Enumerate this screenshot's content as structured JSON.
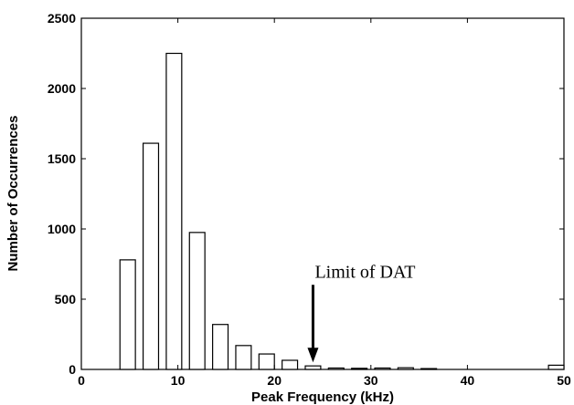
{
  "chart_data": {
    "type": "bar",
    "title": "",
    "xlabel": "Peak Frequency (kHz)",
    "ylabel": "Number of Occurrences",
    "xlim": [
      0,
      50
    ],
    "ylim": [
      0,
      2500
    ],
    "xticks": [
      0,
      10,
      20,
      30,
      40,
      50
    ],
    "yticks": [
      0,
      500,
      1000,
      1500,
      2000,
      2500
    ],
    "grid": false,
    "bar_width": 1.6,
    "x": [
      4.8,
      7.2,
      9.6,
      12.0,
      14.4,
      16.8,
      19.2,
      21.6,
      24.0,
      26.4,
      28.8,
      31.2,
      33.6,
      36.0,
      49.2
    ],
    "values": [
      780,
      1610,
      2250,
      975,
      320,
      170,
      110,
      65,
      25,
      10,
      8,
      10,
      12,
      6,
      30
    ],
    "annotation": {
      "text": "Limit of DAT",
      "target_x": 24.0,
      "target_y": 50
    }
  }
}
